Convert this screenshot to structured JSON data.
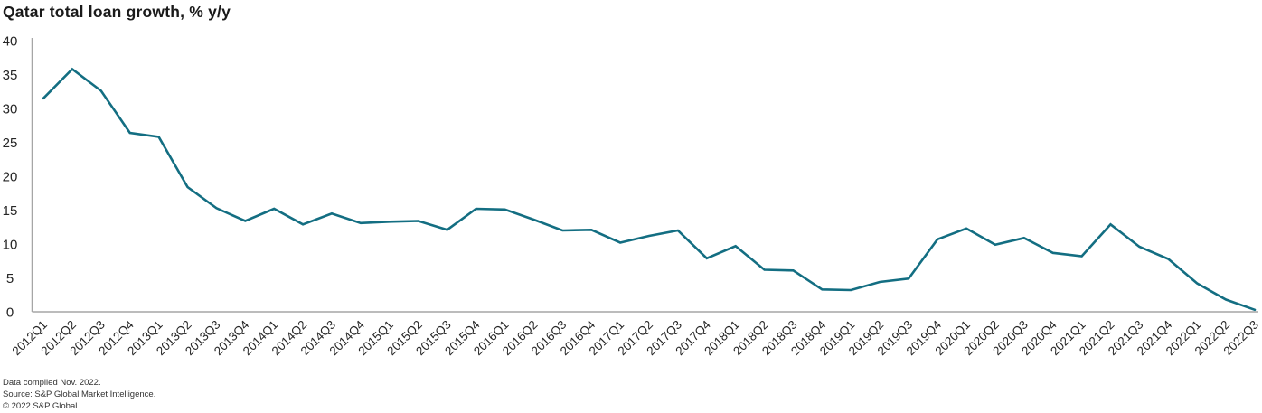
{
  "title": "Qatar total loan growth, % y/y",
  "footer": {
    "line1": "Data compiled Nov. 2022.",
    "line2": "Source: S&P Global Market Intelligence.",
    "line3": "© 2022 S&P Global."
  },
  "colors": {
    "line": "#136e82",
    "axis": "#a6a6a6",
    "tick_label": "#262626",
    "title": "#1a1a1a",
    "footer_text": "#333333"
  },
  "chart_data": {
    "type": "line",
    "title": "Qatar total loan growth, % y/y",
    "categories": [
      "2012Q1",
      "2012Q2",
      "2012Q3",
      "2012Q4",
      "2013Q1",
      "2013Q2",
      "2013Q3",
      "2013Q4",
      "2014Q1",
      "2014Q2",
      "2014Q3",
      "2014Q4",
      "2015Q1",
      "2015Q2",
      "2015Q3",
      "2015Q4",
      "2016Q1",
      "2016Q2",
      "2016Q3",
      "2016Q4",
      "2017Q1",
      "2017Q2",
      "2017Q3",
      "2017Q4",
      "2018Q1",
      "2018Q2",
      "2018Q3",
      "2018Q4",
      "2019Q1",
      "2019Q2",
      "2019Q3",
      "2019Q4",
      "2020Q1",
      "2020Q2",
      "2020Q3",
      "2020Q4",
      "2021Q1",
      "2021Q2",
      "2021Q3",
      "2021Q4",
      "2022Q1",
      "2022Q2",
      "2022Q3"
    ],
    "values": [
      31.5,
      35.8,
      32.6,
      26.4,
      25.8,
      18.4,
      15.3,
      13.4,
      15.2,
      12.9,
      14.5,
      13.1,
      13.3,
      13.4,
      12.1,
      15.2,
      15.1,
      13.6,
      12.0,
      12.1,
      10.2,
      11.2,
      12.0,
      7.9,
      9.7,
      6.2,
      6.1,
      3.3,
      3.2,
      4.4,
      4.9,
      10.7,
      12.3,
      9.9,
      10.9,
      8.7,
      8.2,
      12.9,
      9.6,
      7.8,
      4.2,
      1.8,
      0.3
    ],
    "xlabel": "",
    "ylabel": "",
    "ylim": [
      0,
      40
    ],
    "yticks": [
      0,
      5,
      10,
      15,
      20,
      25,
      30,
      35,
      40
    ],
    "grid": false,
    "legend": "none"
  }
}
